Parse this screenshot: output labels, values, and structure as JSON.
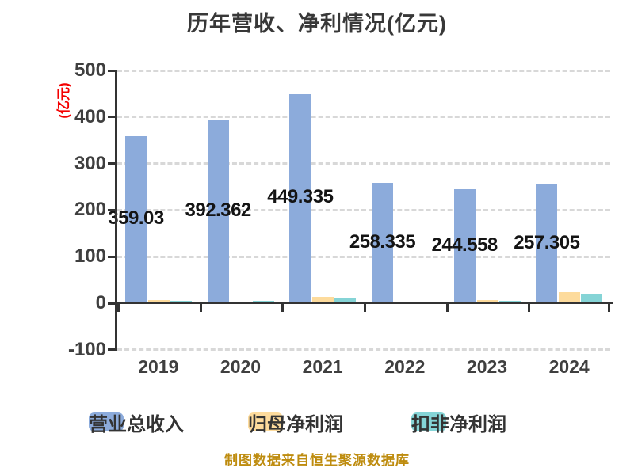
{
  "title": "历年营收、净利情况(亿元)",
  "y_axis_unit": "(亿元)",
  "caption": "制图数据来自恒生聚源数据库",
  "colors": {
    "revenue_bar": "#8CABDB",
    "net_profit_bar": "#FDDB9C",
    "non_gaap_bar": "#85D4D6",
    "axis": "#333333",
    "grid": "#D8D8D8",
    "title_text": "#383838",
    "axis_label_text": "#3F3F3F",
    "value_label_text": "#141414",
    "y_unit_text": "#F40000",
    "caption_text": "#BE8C0F"
  },
  "chart_data": {
    "type": "bar",
    "title": "历年营收、净利情况(亿元)",
    "ylabel": "(亿元)",
    "categories": [
      "2019",
      "2020",
      "2021",
      "2022",
      "2023",
      "2024"
    ],
    "series": [
      {
        "name": "营业总收入",
        "color_key": "revenue_bar",
        "values": [
          359.03,
          392.362,
          449.335,
          258.335,
          244.558,
          257.305
        ],
        "labels": [
          "359.03",
          "392.362",
          "449.335",
          "258.335",
          "244.558",
          "257.305"
        ],
        "show_labels": true
      },
      {
        "name": "归母净利润",
        "color_key": "net_profit_bar",
        "values": [
          7,
          4,
          13,
          2,
          6,
          24
        ],
        "show_labels": false
      },
      {
        "name": "扣非净利润",
        "color_key": "non_gaap_bar",
        "values": [
          5,
          5,
          10,
          2,
          5,
          20
        ],
        "show_labels": false
      }
    ],
    "ylim": [
      -100,
      500
    ],
    "y_ticks": [
      500,
      400,
      300,
      200,
      100,
      0,
      -100
    ],
    "grid": "horizontal dashed",
    "legend_position": "bottom"
  },
  "legend": {
    "items": [
      {
        "label": "营业总收入"
      },
      {
        "label": "归母净利润"
      },
      {
        "label": "扣非净利润"
      }
    ]
  }
}
